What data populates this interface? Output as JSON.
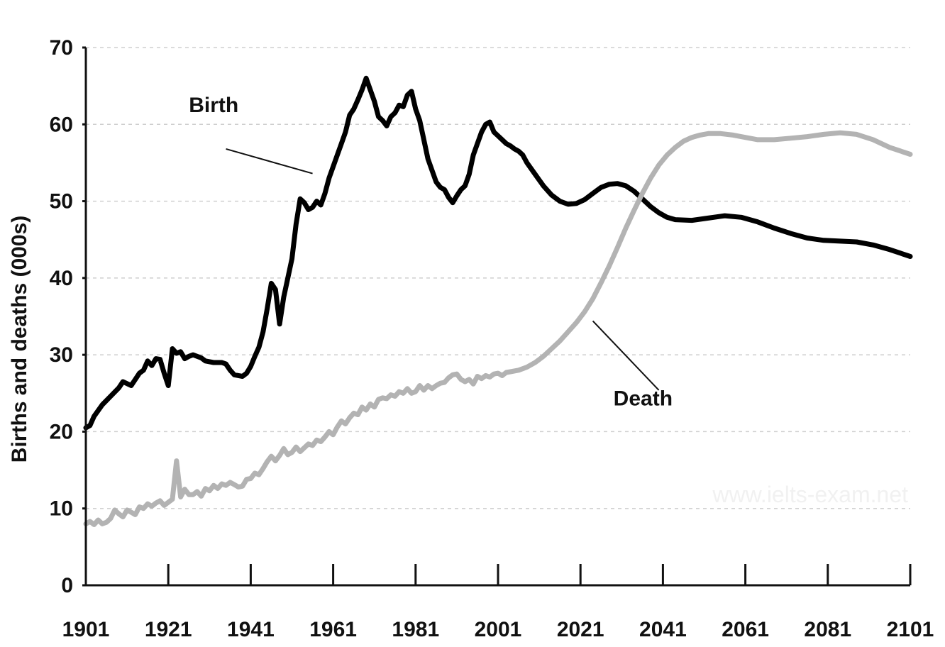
{
  "chart_data": {
    "type": "line",
    "ylabel": "Births and deaths (000s)",
    "xlabel": "",
    "xlim": [
      1901,
      2101
    ],
    "ylim": [
      0,
      70
    ],
    "x_ticks": [
      1901,
      1921,
      1941,
      1961,
      1981,
      2001,
      2021,
      2041,
      2061,
      2081,
      2101
    ],
    "y_ticks": [
      0,
      10,
      20,
      30,
      40,
      50,
      60,
      70
    ],
    "grid": "horizontal dashed",
    "watermark": "www.ielts-exam.net",
    "series": [
      {
        "name": "Birth",
        "color": "#000000",
        "points": [
          [
            1901,
            20.5
          ],
          [
            1902,
            20.8
          ],
          [
            1903,
            22
          ],
          [
            1905,
            23.5
          ],
          [
            1907,
            24.6
          ],
          [
            1909,
            25.7
          ],
          [
            1910,
            26.5
          ],
          [
            1912,
            26
          ],
          [
            1913,
            26.8
          ],
          [
            1914,
            27.6
          ],
          [
            1915,
            28
          ],
          [
            1916,
            29.2
          ],
          [
            1917,
            28.6
          ],
          [
            1918,
            29.5
          ],
          [
            1919,
            29.4
          ],
          [
            1920,
            27.6
          ],
          [
            1921,
            26
          ],
          [
            1922,
            30.8
          ],
          [
            1923,
            30.2
          ],
          [
            1924,
            30.4
          ],
          [
            1925,
            29.5
          ],
          [
            1926,
            29.8
          ],
          [
            1927,
            30
          ],
          [
            1929,
            29.6
          ],
          [
            1930,
            29.2
          ],
          [
            1932,
            29
          ],
          [
            1934,
            29
          ],
          [
            1935,
            28.8
          ],
          [
            1936,
            28
          ],
          [
            1937,
            27.4
          ],
          [
            1938,
            27.3
          ],
          [
            1939,
            27.2
          ],
          [
            1940,
            27.6
          ],
          [
            1941,
            28.5
          ],
          [
            1942,
            29.8
          ],
          [
            1943,
            31
          ],
          [
            1944,
            33
          ],
          [
            1945,
            36
          ],
          [
            1946,
            39.3
          ],
          [
            1947,
            38.5
          ],
          [
            1948,
            34
          ],
          [
            1949,
            37.5
          ],
          [
            1950,
            40
          ],
          [
            1951,
            42.5
          ],
          [
            1952,
            47
          ],
          [
            1953,
            50.3
          ],
          [
            1954,
            49.8
          ],
          [
            1955,
            48.9
          ],
          [
            1956,
            49.2
          ],
          [
            1957,
            50
          ],
          [
            1958,
            49.5
          ],
          [
            1959,
            51
          ],
          [
            1960,
            53
          ],
          [
            1961,
            54.5
          ],
          [
            1962,
            56
          ],
          [
            1963,
            57.5
          ],
          [
            1964,
            59
          ],
          [
            1965,
            61.2
          ],
          [
            1966,
            62
          ],
          [
            1967,
            63.2
          ],
          [
            1968,
            64.5
          ],
          [
            1969,
            66
          ],
          [
            1970,
            64.5
          ],
          [
            1971,
            63
          ],
          [
            1972,
            61
          ],
          [
            1973,
            60.5
          ],
          [
            1974,
            59.8
          ],
          [
            1975,
            61
          ],
          [
            1976,
            61.5
          ],
          [
            1977,
            62.5
          ],
          [
            1978,
            62.3
          ],
          [
            1979,
            63.8
          ],
          [
            1980,
            64.3
          ],
          [
            1981,
            62
          ],
          [
            1982,
            60.5
          ],
          [
            1983,
            58
          ],
          [
            1984,
            55.5
          ],
          [
            1985,
            54
          ],
          [
            1986,
            52.5
          ],
          [
            1987,
            51.8
          ],
          [
            1988,
            51.5
          ],
          [
            1989,
            50.5
          ],
          [
            1990,
            49.8
          ],
          [
            1991,
            50.7
          ],
          [
            1992,
            51.5
          ],
          [
            1993,
            52
          ],
          [
            1994,
            53.5
          ],
          [
            1995,
            56
          ],
          [
            1996,
            57.5
          ],
          [
            1997,
            59
          ],
          [
            1998,
            60
          ],
          [
            1999,
            60.3
          ],
          [
            2000,
            59
          ],
          [
            2001,
            58.5
          ],
          [
            2002,
            58
          ],
          [
            2003,
            57.5
          ],
          [
            2004,
            57.2
          ],
          [
            2005,
            56.8
          ],
          [
            2006,
            56.5
          ],
          [
            2007,
            56
          ],
          [
            2008,
            55
          ],
          [
            2010,
            53.5
          ],
          [
            2012,
            52
          ],
          [
            2014,
            50.8
          ],
          [
            2016,
            50
          ],
          [
            2018,
            49.6
          ],
          [
            2020,
            49.7
          ],
          [
            2022,
            50.2
          ],
          [
            2024,
            51
          ],
          [
            2026,
            51.8
          ],
          [
            2028,
            52.2
          ],
          [
            2030,
            52.3
          ],
          [
            2032,
            52
          ],
          [
            2034,
            51.3
          ],
          [
            2036,
            50.3
          ],
          [
            2038,
            49.3
          ],
          [
            2040,
            48.5
          ],
          [
            2042,
            47.9
          ],
          [
            2044,
            47.6
          ],
          [
            2048,
            47.5
          ],
          [
            2052,
            47.8
          ],
          [
            2056,
            48.1
          ],
          [
            2060,
            47.9
          ],
          [
            2064,
            47.3
          ],
          [
            2068,
            46.5
          ],
          [
            2072,
            45.8
          ],
          [
            2076,
            45.2
          ],
          [
            2080,
            44.9
          ],
          [
            2084,
            44.8
          ],
          [
            2088,
            44.7
          ],
          [
            2092,
            44.3
          ],
          [
            2096,
            43.7
          ],
          [
            2101,
            42.8
          ]
        ]
      },
      {
        "name": "Death",
        "color": "#b3b3b3",
        "points": [
          [
            1901,
            8
          ],
          [
            1902,
            8.3
          ],
          [
            1903,
            7.9
          ],
          [
            1904,
            8.5
          ],
          [
            1905,
            8
          ],
          [
            1906,
            8.2
          ],
          [
            1907,
            8.7
          ],
          [
            1908,
            9.8
          ],
          [
            1909,
            9.3
          ],
          [
            1910,
            8.9
          ],
          [
            1911,
            9.8
          ],
          [
            1912,
            9.5
          ],
          [
            1913,
            9.2
          ],
          [
            1914,
            10.2
          ],
          [
            1915,
            10
          ],
          [
            1916,
            10.6
          ],
          [
            1917,
            10.3
          ],
          [
            1918,
            10.7
          ],
          [
            1919,
            11
          ],
          [
            1920,
            10.4
          ],
          [
            1921,
            10.8
          ],
          [
            1922,
            11.2
          ],
          [
            1923,
            16.2
          ],
          [
            1924,
            11.5
          ],
          [
            1925,
            12.5
          ],
          [
            1926,
            11.8
          ],
          [
            1927,
            11.8
          ],
          [
            1928,
            12.2
          ],
          [
            1929,
            11.6
          ],
          [
            1930,
            12.6
          ],
          [
            1931,
            12.3
          ],
          [
            1932,
            13
          ],
          [
            1933,
            12.6
          ],
          [
            1934,
            13.2
          ],
          [
            1935,
            13
          ],
          [
            1936,
            13.4
          ],
          [
            1937,
            13.1
          ],
          [
            1938,
            12.8
          ],
          [
            1939,
            12.9
          ],
          [
            1940,
            13.8
          ],
          [
            1941,
            13.9
          ],
          [
            1942,
            14.6
          ],
          [
            1943,
            14.4
          ],
          [
            1944,
            15.2
          ],
          [
            1945,
            16.1
          ],
          [
            1946,
            16.8
          ],
          [
            1947,
            16.2
          ],
          [
            1948,
            16.9
          ],
          [
            1949,
            17.8
          ],
          [
            1950,
            17
          ],
          [
            1951,
            17.3
          ],
          [
            1952,
            18
          ],
          [
            1953,
            17.4
          ],
          [
            1954,
            17.9
          ],
          [
            1955,
            18.4
          ],
          [
            1956,
            18.2
          ],
          [
            1957,
            18.9
          ],
          [
            1958,
            18.7
          ],
          [
            1959,
            19.3
          ],
          [
            1960,
            20
          ],
          [
            1961,
            19.6
          ],
          [
            1962,
            20.6
          ],
          [
            1963,
            21.4
          ],
          [
            1964,
            21
          ],
          [
            1965,
            21.8
          ],
          [
            1966,
            22.4
          ],
          [
            1967,
            22.2
          ],
          [
            1968,
            23.2
          ],
          [
            1969,
            22.8
          ],
          [
            1970,
            23.6
          ],
          [
            1971,
            23.2
          ],
          [
            1972,
            24.2
          ],
          [
            1973,
            24.4
          ],
          [
            1974,
            24.3
          ],
          [
            1975,
            24.8
          ],
          [
            1976,
            24.6
          ],
          [
            1977,
            25.2
          ],
          [
            1978,
            25
          ],
          [
            1979,
            25.6
          ],
          [
            1980,
            25
          ],
          [
            1981,
            25.2
          ],
          [
            1982,
            26
          ],
          [
            1983,
            25.4
          ],
          [
            1984,
            26
          ],
          [
            1985,
            25.6
          ],
          [
            1986,
            26
          ],
          [
            1987,
            26.3
          ],
          [
            1988,
            26.4
          ],
          [
            1989,
            27
          ],
          [
            1990,
            27.4
          ],
          [
            1991,
            27.5
          ],
          [
            1992,
            26.8
          ],
          [
            1993,
            26.5
          ],
          [
            1994,
            26.8
          ],
          [
            1995,
            26.2
          ],
          [
            1996,
            27.2
          ],
          [
            1997,
            26.9
          ],
          [
            1998,
            27.3
          ],
          [
            1999,
            27.1
          ],
          [
            2000,
            27.5
          ],
          [
            2001,
            27.6
          ],
          [
            2002,
            27.3
          ],
          [
            2003,
            27.7
          ],
          [
            2004,
            27.8
          ],
          [
            2006,
            28
          ],
          [
            2008,
            28.4
          ],
          [
            2010,
            29
          ],
          [
            2012,
            29.8
          ],
          [
            2014,
            30.8
          ],
          [
            2016,
            31.8
          ],
          [
            2018,
            33
          ],
          [
            2020,
            34.2
          ],
          [
            2022,
            35.6
          ],
          [
            2024,
            37.3
          ],
          [
            2026,
            39.4
          ],
          [
            2028,
            41.6
          ],
          [
            2030,
            44
          ],
          [
            2032,
            46.5
          ],
          [
            2034,
            48.8
          ],
          [
            2036,
            51
          ],
          [
            2038,
            53
          ],
          [
            2040,
            54.7
          ],
          [
            2042,
            56
          ],
          [
            2044,
            57
          ],
          [
            2046,
            57.8
          ],
          [
            2048,
            58.3
          ],
          [
            2050,
            58.6
          ],
          [
            2052,
            58.8
          ],
          [
            2055,
            58.8
          ],
          [
            2058,
            58.6
          ],
          [
            2061,
            58.3
          ],
          [
            2064,
            58
          ],
          [
            2068,
            58
          ],
          [
            2072,
            58.2
          ],
          [
            2076,
            58.4
          ],
          [
            2080,
            58.7
          ],
          [
            2084,
            58.9
          ],
          [
            2088,
            58.7
          ],
          [
            2092,
            58
          ],
          [
            2096,
            57
          ],
          [
            2101,
            56.1
          ]
        ]
      }
    ]
  }
}
